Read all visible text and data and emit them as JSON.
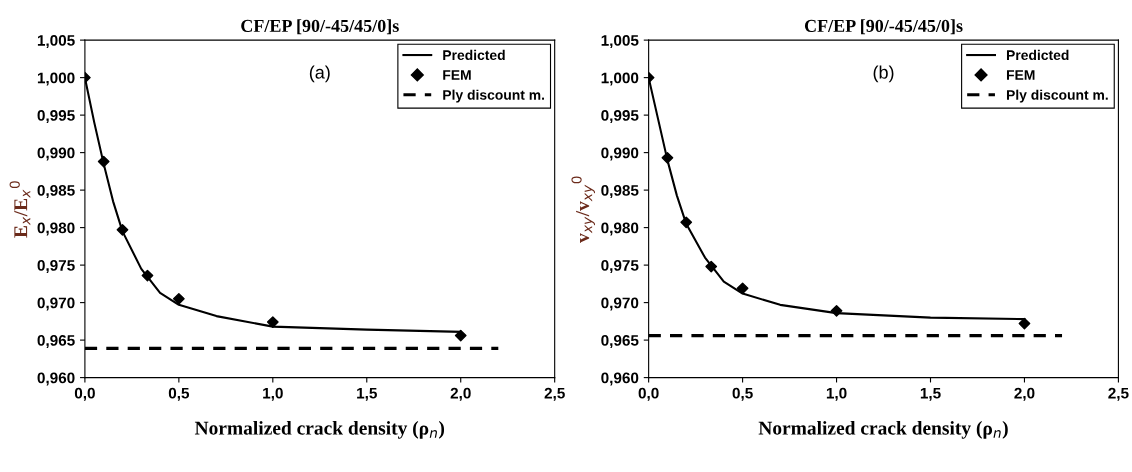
{
  "chart_data": [
    {
      "type": "line",
      "title": "CF/EP [90/-45/45/0]s",
      "xlabel": "Normalized crack density (ρ$_{n}$)",
      "ylabel": "E$_{x}$/E$_{x}$$^{0}$",
      "annotations": [
        "(a)"
      ],
      "series": [
        {
          "name": "Predicted",
          "color": "#000000",
          "line_style": "solid",
          "marker": "none",
          "x": [
            0,
            0.05,
            0.1,
            0.15,
            0.2,
            0.3,
            0.4,
            0.5,
            0.7,
            1.0,
            1.5,
            2.0
          ],
          "values": [
            1.0,
            0.994,
            0.9885,
            0.9835,
            0.9795,
            0.9745,
            0.9713,
            0.9697,
            0.9682,
            0.9668,
            0.9664,
            0.9661
          ]
        },
        {
          "name": "FEM",
          "type": "scatter",
          "color": "#000000",
          "marker": "diamond",
          "x": [
            0,
            0.1,
            0.2,
            0.333,
            0.5,
            1.0,
            2.0
          ],
          "values": [
            1.0,
            0.9888,
            0.9797,
            0.9736,
            0.9705,
            0.9674,
            0.9656
          ]
        },
        {
          "name": "Ply discount m.",
          "color": "#000000",
          "line_style": "dashed",
          "marker": "none",
          "x": [
            0,
            2.2
          ],
          "values": [
            0.9639,
            0.9639
          ]
        }
      ],
      "xlim": [
        0,
        2.5
      ],
      "xticks": [
        {
          "value": 0,
          "label": "0,0"
        },
        {
          "value": 0.5,
          "label": "0,5"
        },
        {
          "value": 1.0,
          "label": "1,0"
        },
        {
          "value": 1.5,
          "label": "1,5"
        },
        {
          "value": 2.0,
          "label": "2,0"
        },
        {
          "value": 2.5,
          "label": "2,5"
        }
      ],
      "ylim": [
        0.96,
        1.005
      ],
      "yticks": [
        {
          "value": 0.96,
          "label": "0,960"
        },
        {
          "value": 0.965,
          "label": "0,965"
        },
        {
          "value": 0.97,
          "label": "0,970"
        },
        {
          "value": 0.975,
          "label": "0,975"
        },
        {
          "value": 0.98,
          "label": "0,980"
        },
        {
          "value": 0.985,
          "label": "0,985"
        },
        {
          "value": 0.99,
          "label": "0,990"
        },
        {
          "value": 0.995,
          "label": "0,995"
        },
        {
          "value": 1.0,
          "label": "1,000"
        },
        {
          "value": 1.005,
          "label": "1,005"
        }
      ],
      "grid": false,
      "legend": "top right"
    },
    {
      "type": "line",
      "title": "CF/EP [90/-45/45/0]s",
      "xlabel": "Normalized crack density (ρ$_{n}$)",
      "ylabel": "v$_{xy}$/v$_{xy}$$^{0}$",
      "annotations": [
        "(b)"
      ],
      "series": [
        {
          "name": "Predicted",
          "color": "#000000",
          "line_style": "solid",
          "marker": "none",
          "x": [
            0,
            0.05,
            0.1,
            0.15,
            0.2,
            0.3,
            0.4,
            0.5,
            0.7,
            1.0,
            1.5,
            2.0
          ],
          "values": [
            1.0,
            0.9945,
            0.989,
            0.9843,
            0.9805,
            0.976,
            0.9728,
            0.9712,
            0.9697,
            0.9686,
            0.968,
            0.9678
          ]
        },
        {
          "name": "FEM",
          "type": "scatter",
          "color": "#000000",
          "marker": "diamond",
          "x": [
            0,
            0.1,
            0.2,
            0.333,
            0.5,
            1.0,
            2.0
          ],
          "values": [
            1.0,
            0.9893,
            0.9807,
            0.9748,
            0.9719,
            0.9689,
            0.9672
          ]
        },
        {
          "name": "Ply discount m.",
          "color": "#000000",
          "line_style": "dashed",
          "marker": "none",
          "x": [
            0,
            2.2
          ],
          "values": [
            0.9656,
            0.9656
          ]
        }
      ],
      "xlim": [
        0,
        2.5
      ],
      "xticks": [
        {
          "value": 0,
          "label": "0,0"
        },
        {
          "value": 0.5,
          "label": "0,5"
        },
        {
          "value": 1.0,
          "label": "1,0"
        },
        {
          "value": 1.5,
          "label": "1,5"
        },
        {
          "value": 2.0,
          "label": "2,0"
        },
        {
          "value": 2.5,
          "label": "2,5"
        }
      ],
      "ylim": [
        0.96,
        1.005
      ],
      "yticks": [
        {
          "value": 0.96,
          "label": "0,960"
        },
        {
          "value": 0.965,
          "label": "0,965"
        },
        {
          "value": 0.97,
          "label": "0,970"
        },
        {
          "value": 0.975,
          "label": "0,975"
        },
        {
          "value": 0.98,
          "label": "0,980"
        },
        {
          "value": 0.985,
          "label": "0,985"
        },
        {
          "value": 0.99,
          "label": "0,990"
        },
        {
          "value": 0.995,
          "label": "0,995"
        },
        {
          "value": 1.0,
          "label": "1,000"
        },
        {
          "value": 1.005,
          "label": "1,005"
        }
      ],
      "grid": false,
      "legend": "top right"
    }
  ]
}
